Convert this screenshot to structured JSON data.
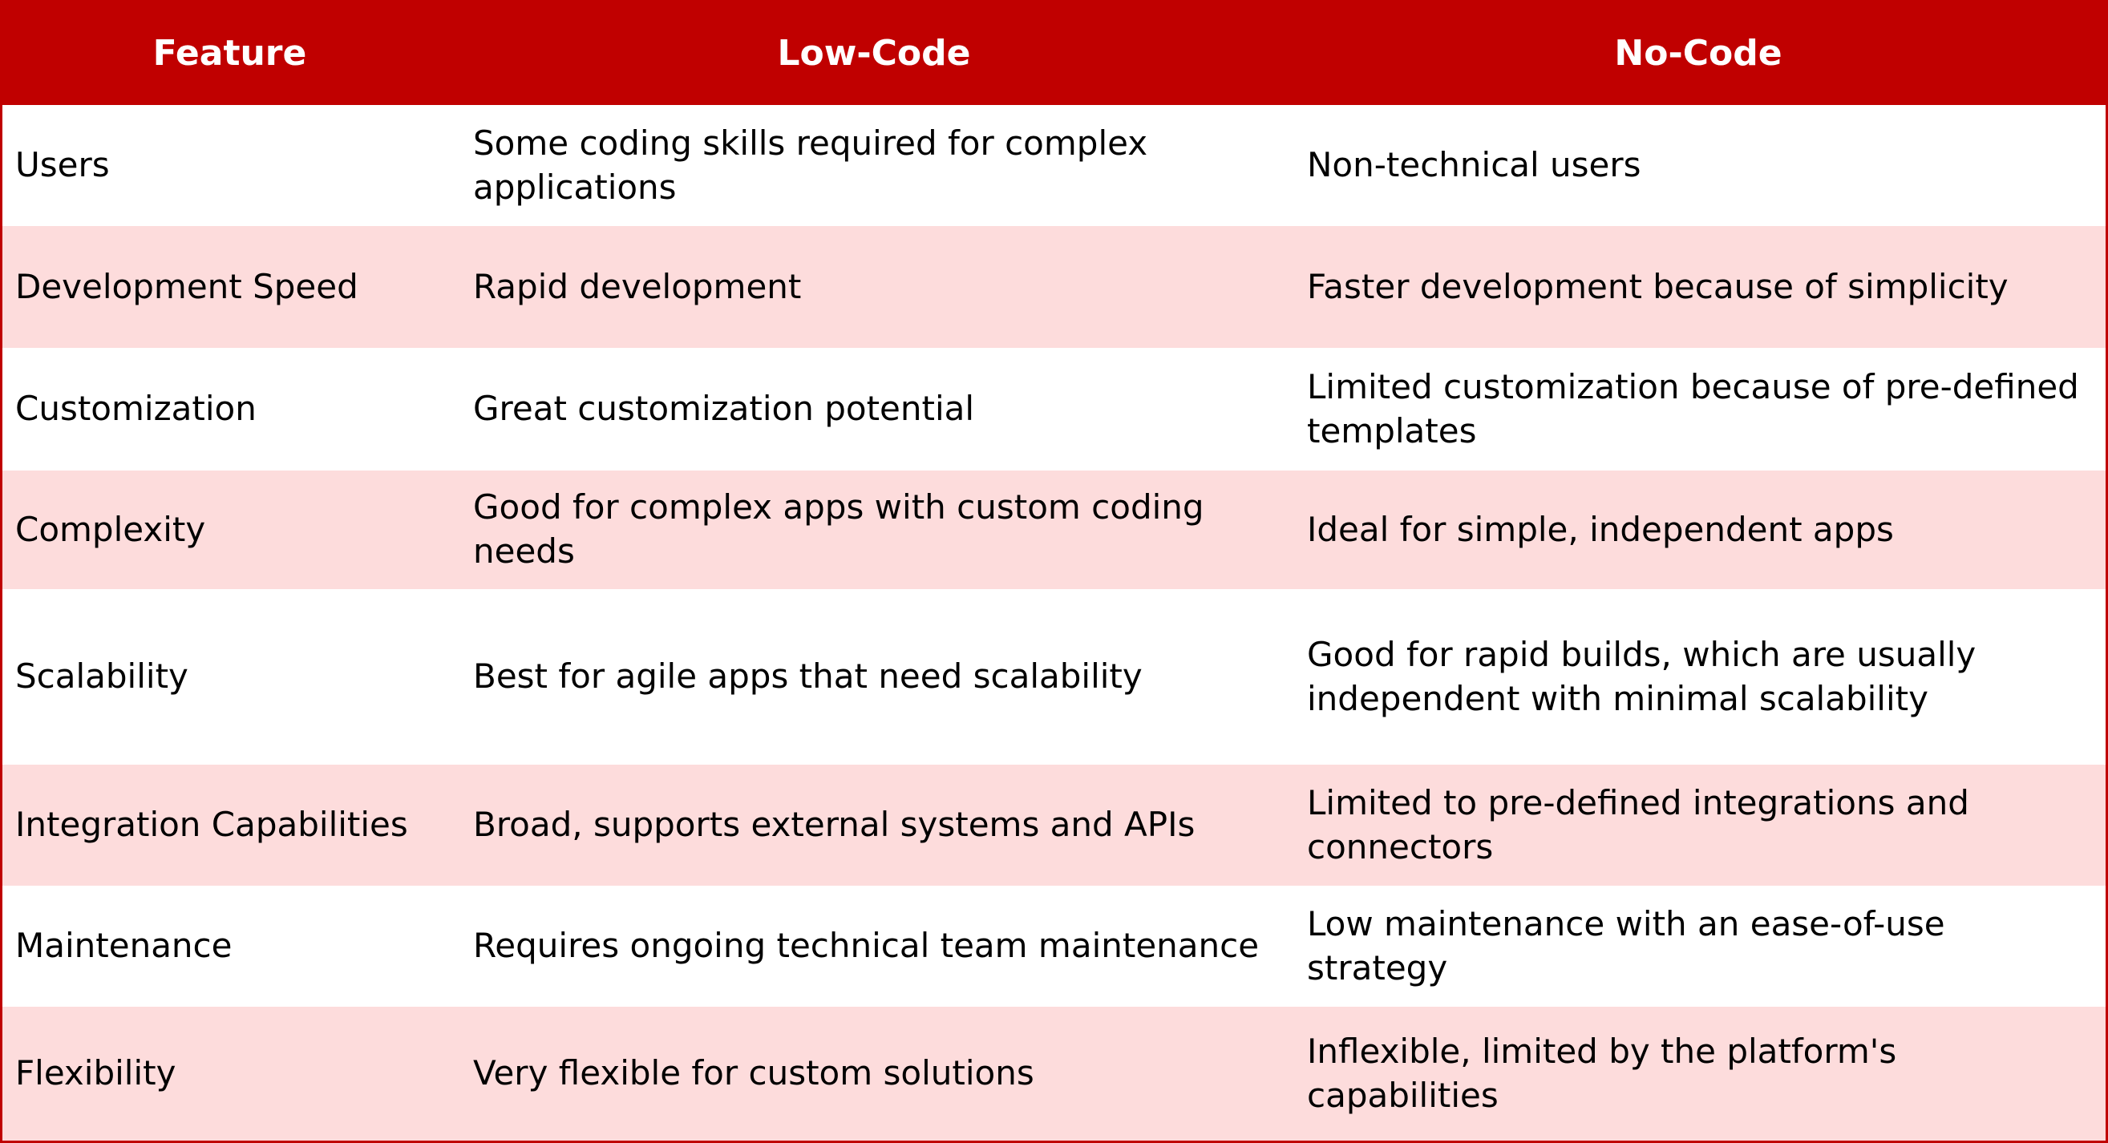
{
  "header": {
    "columns": [
      "Feature",
      "Low-Code",
      "No-Code"
    ]
  },
  "table": {
    "rows": [
      [
        "Users",
        "Some coding skills required for complex applications",
        "Non-technical users"
      ],
      [
        "Development Speed",
        "Rapid development",
        "Faster development because of simplicity"
      ],
      [
        "Customization",
        "Great customization potential",
        "Limited customization because of pre-defined templates"
      ],
      [
        "Complexity",
        "Good for complex apps with custom coding needs",
        "Ideal for simple, independent apps"
      ],
      [
        "Scalability",
        "Best for agile apps that need scalability",
        "Good for rapid builds, which are usually independent with minimal scalability"
      ],
      [
        "Integration Capabilities",
        "Broad, supports external systems and APIs",
        "Limited to pre-defined integrations and connectors"
      ],
      [
        "Maintenance",
        "Requires ongoing technical team maintenance",
        "Low maintenance with an ease-of-use strategy"
      ],
      [
        "Flexibility",
        "Very flexible for custom solutions",
        "Inflexible, limited by the platform's capabilities"
      ]
    ]
  }
}
